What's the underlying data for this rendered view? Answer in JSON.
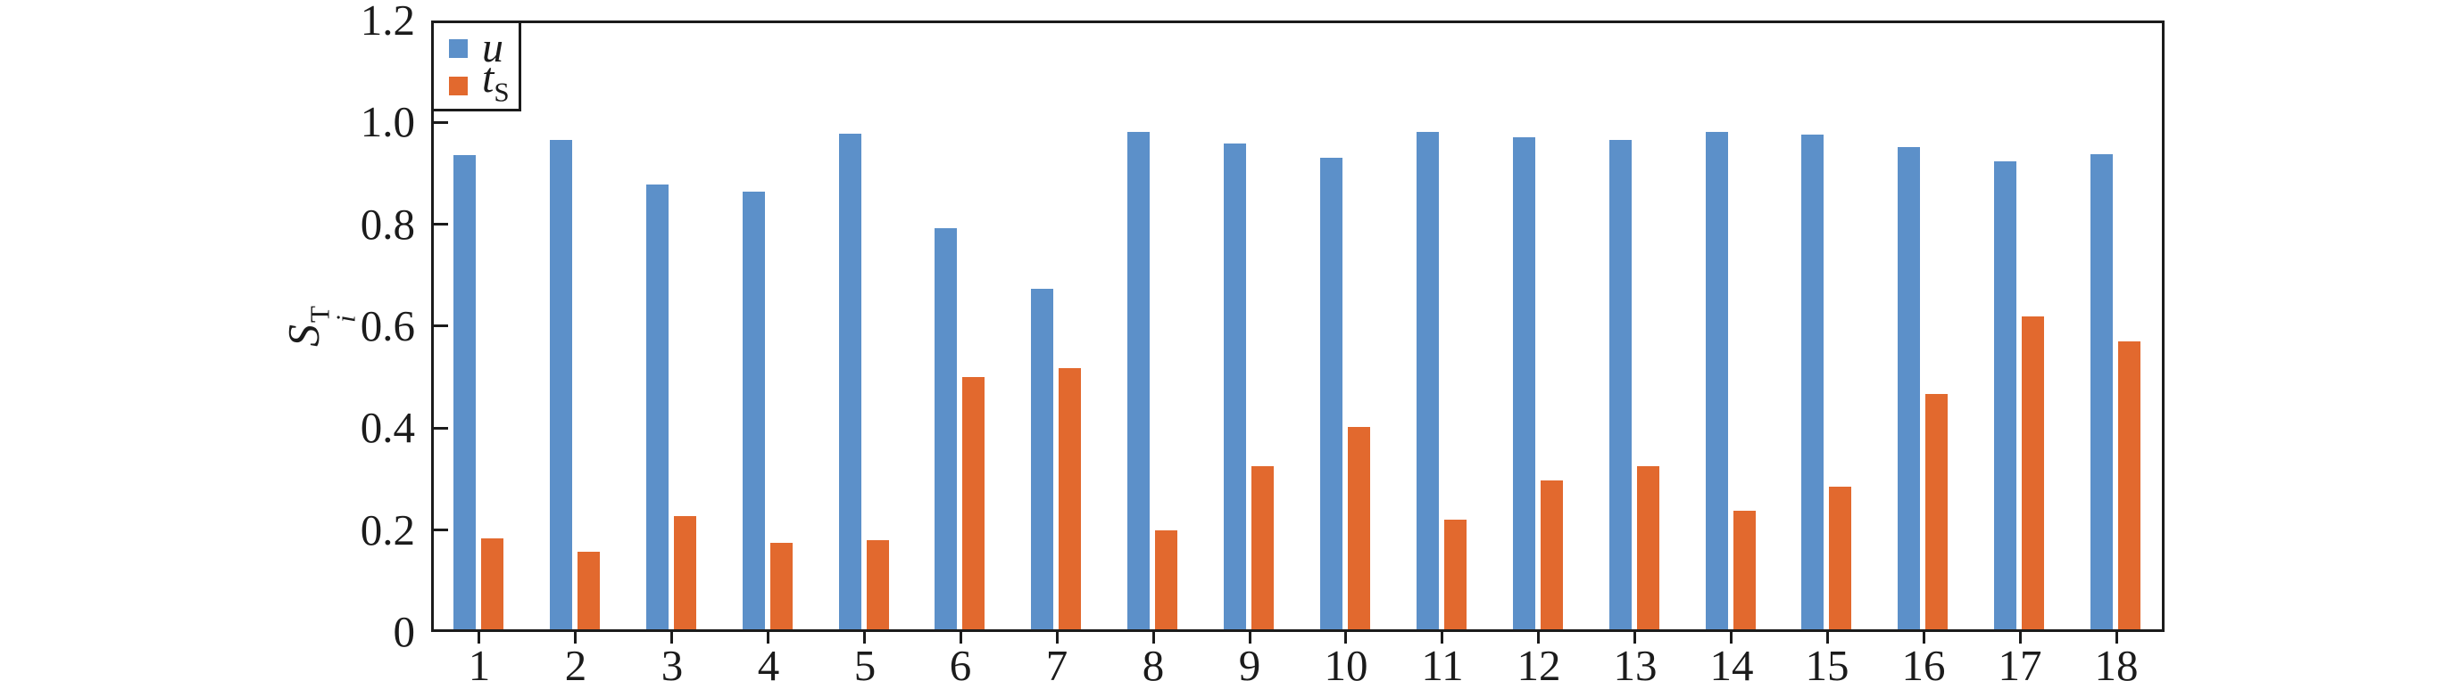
{
  "figure": {
    "background": "#ffffff",
    "frame_color": "#1b1b1b"
  },
  "chart_data": {
    "type": "bar",
    "title": "",
    "xlabel": "",
    "ylabel": {
      "main": "S",
      "sup": "T",
      "sub": "i"
    },
    "ylim": [
      0,
      1.2
    ],
    "yticks": [
      "0",
      "0.2",
      "0.4",
      "0.6",
      "0.8",
      "1.0",
      "1.2"
    ],
    "grid": false,
    "legend_position": "upper-left",
    "categories": [
      "1",
      "2",
      "3",
      "4",
      "5",
      "6",
      "7",
      "8",
      "9",
      "10",
      "11",
      "12",
      "13",
      "14",
      "15",
      "16",
      "17",
      "18"
    ],
    "series": [
      {
        "name": "u",
        "color": "#5C90C9",
        "values": [
          0.935,
          0.965,
          0.878,
          0.865,
          0.977,
          0.793,
          0.673,
          0.982,
          0.958,
          0.931,
          0.982,
          0.971,
          0.966,
          0.981,
          0.976,
          0.951,
          0.923,
          0.937
        ]
      },
      {
        "name": "t_S",
        "color": "#E2692E",
        "values": [
          0.183,
          0.158,
          0.227,
          0.175,
          0.18,
          0.5,
          0.518,
          0.2,
          0.326,
          0.403,
          0.221,
          0.297,
          0.326,
          0.238,
          0.285,
          0.467,
          0.62,
          0.57
        ]
      }
    ]
  },
  "legend": {
    "rows": [
      {
        "main": "u",
        "sub": ""
      },
      {
        "main": "t",
        "sub": "S"
      }
    ]
  }
}
